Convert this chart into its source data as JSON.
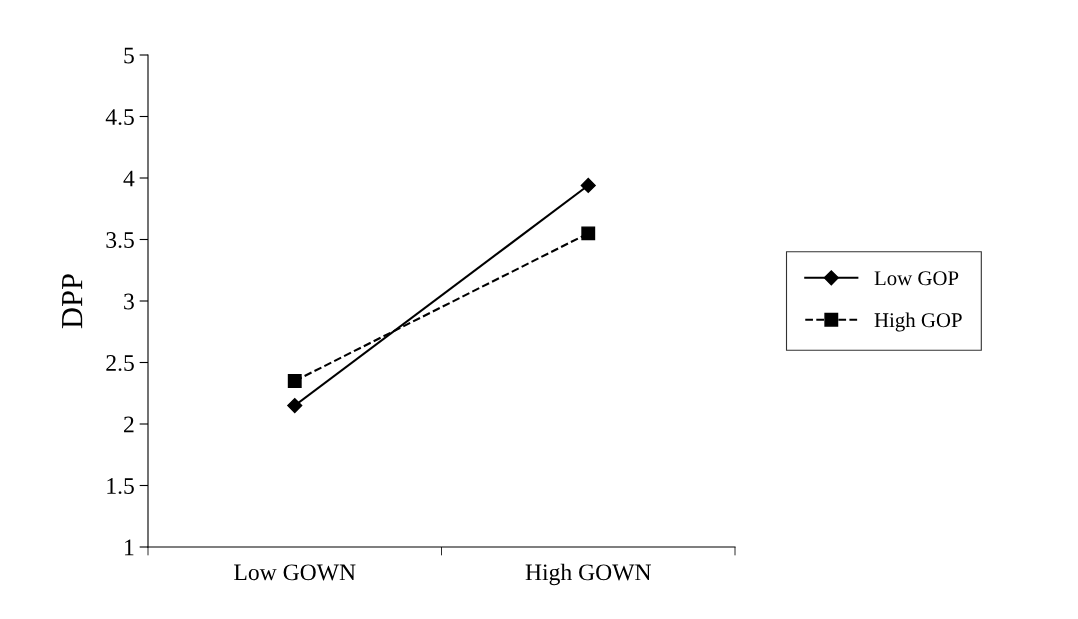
{
  "chart_data": {
    "type": "line",
    "ylabel": "DPP",
    "categories": [
      "Low GOWN",
      "High GOWN"
    ],
    "series": [
      {
        "name": "Low GOP",
        "color": "#000000",
        "values": [
          2.15,
          3.94
        ],
        "marker": "diamond",
        "line_style": "solid"
      },
      {
        "name": "High GOP",
        "color": "#000000",
        "values": [
          2.35,
          3.55
        ],
        "marker": "square",
        "line_style": "dashed"
      }
    ],
    "ylim": [
      1,
      5
    ],
    "yticks": [
      1,
      1.5,
      2,
      2.5,
      3,
      3.5,
      4,
      4.5,
      5
    ],
    "grid": false,
    "legend": "right"
  }
}
